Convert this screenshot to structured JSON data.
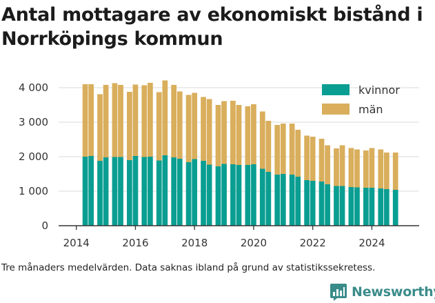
{
  "title": "Antal mottagare av ekonomiskt bistånd i Norrköpings kommun",
  "footnote": "Tre månaders medelvärden. Data saknas ibland på grund av statistikssekretess.",
  "brand": {
    "name": "Newsworthy",
    "logo_icon": "newsworthy-logo-icon"
  },
  "colors": {
    "kvinnor": "#0a9e92",
    "man": "#d9ae5c",
    "grid": "#e0e0e0",
    "axis": "#333333"
  },
  "chart_data": {
    "type": "bar",
    "stacked": true,
    "title": "Antal mottagare av ekonomiskt bistånd i Norrköpings kommun",
    "xlabel": "",
    "ylabel": "",
    "xlim": [
      2013.4,
      2025.6
    ],
    "ylim": [
      0,
      4300
    ],
    "xticks": [
      2014,
      2016,
      2018,
      2020,
      2022,
      2024
    ],
    "xtick_labels": [
      "2014",
      "2016",
      "2018",
      "2020",
      "2022",
      "2024"
    ],
    "yticks": [
      0,
      1000,
      2000,
      3000,
      4000
    ],
    "ytick_labels": [
      "0",
      "1 000",
      "2 000",
      "3 000",
      "4 000"
    ],
    "grid": "horizontal",
    "legend": "top-right",
    "x": [
      2014.3,
      2014.5,
      2014.8,
      2015.0,
      2015.3,
      2015.5,
      2015.8,
      2016.0,
      2016.3,
      2016.5,
      2016.8,
      2017.0,
      2017.3,
      2017.5,
      2017.8,
      2018.0,
      2018.3,
      2018.5,
      2018.8,
      2019.0,
      2019.3,
      2019.5,
      2019.8,
      2020.0,
      2020.3,
      2020.5,
      2020.8,
      2021.0,
      2021.3,
      2021.5,
      2021.8,
      2022.0,
      2022.3,
      2022.5,
      2022.8,
      2023.0,
      2023.3,
      2023.5,
      2023.8,
      2024.0,
      2024.3,
      2024.5,
      2024.8
    ],
    "series": [
      {
        "name": "kvinnor",
        "values": [
          2000,
          2020,
          1880,
          1980,
          1990,
          1990,
          1900,
          2020,
          1990,
          2000,
          1890,
          2040,
          1980,
          1940,
          1840,
          1930,
          1880,
          1770,
          1720,
          1790,
          1780,
          1760,
          1760,
          1780,
          1650,
          1560,
          1480,
          1500,
          1480,
          1420,
          1320,
          1300,
          1280,
          1200,
          1150,
          1150,
          1120,
          1110,
          1100,
          1100,
          1080,
          1060,
          1040
        ]
      },
      {
        "name": "män",
        "values": [
          2100,
          2080,
          1930,
          2100,
          2140,
          2090,
          1980,
          2070,
          2080,
          2140,
          1980,
          2170,
          2100,
          1950,
          1950,
          1920,
          1850,
          1900,
          1780,
          1820,
          1840,
          1740,
          1700,
          1740,
          1660,
          1480,
          1440,
          1460,
          1480,
          1360,
          1290,
          1280,
          1240,
          1130,
          1090,
          1180,
          1130,
          1100,
          1080,
          1150,
          1130,
          1060,
          1080
        ]
      }
    ]
  }
}
